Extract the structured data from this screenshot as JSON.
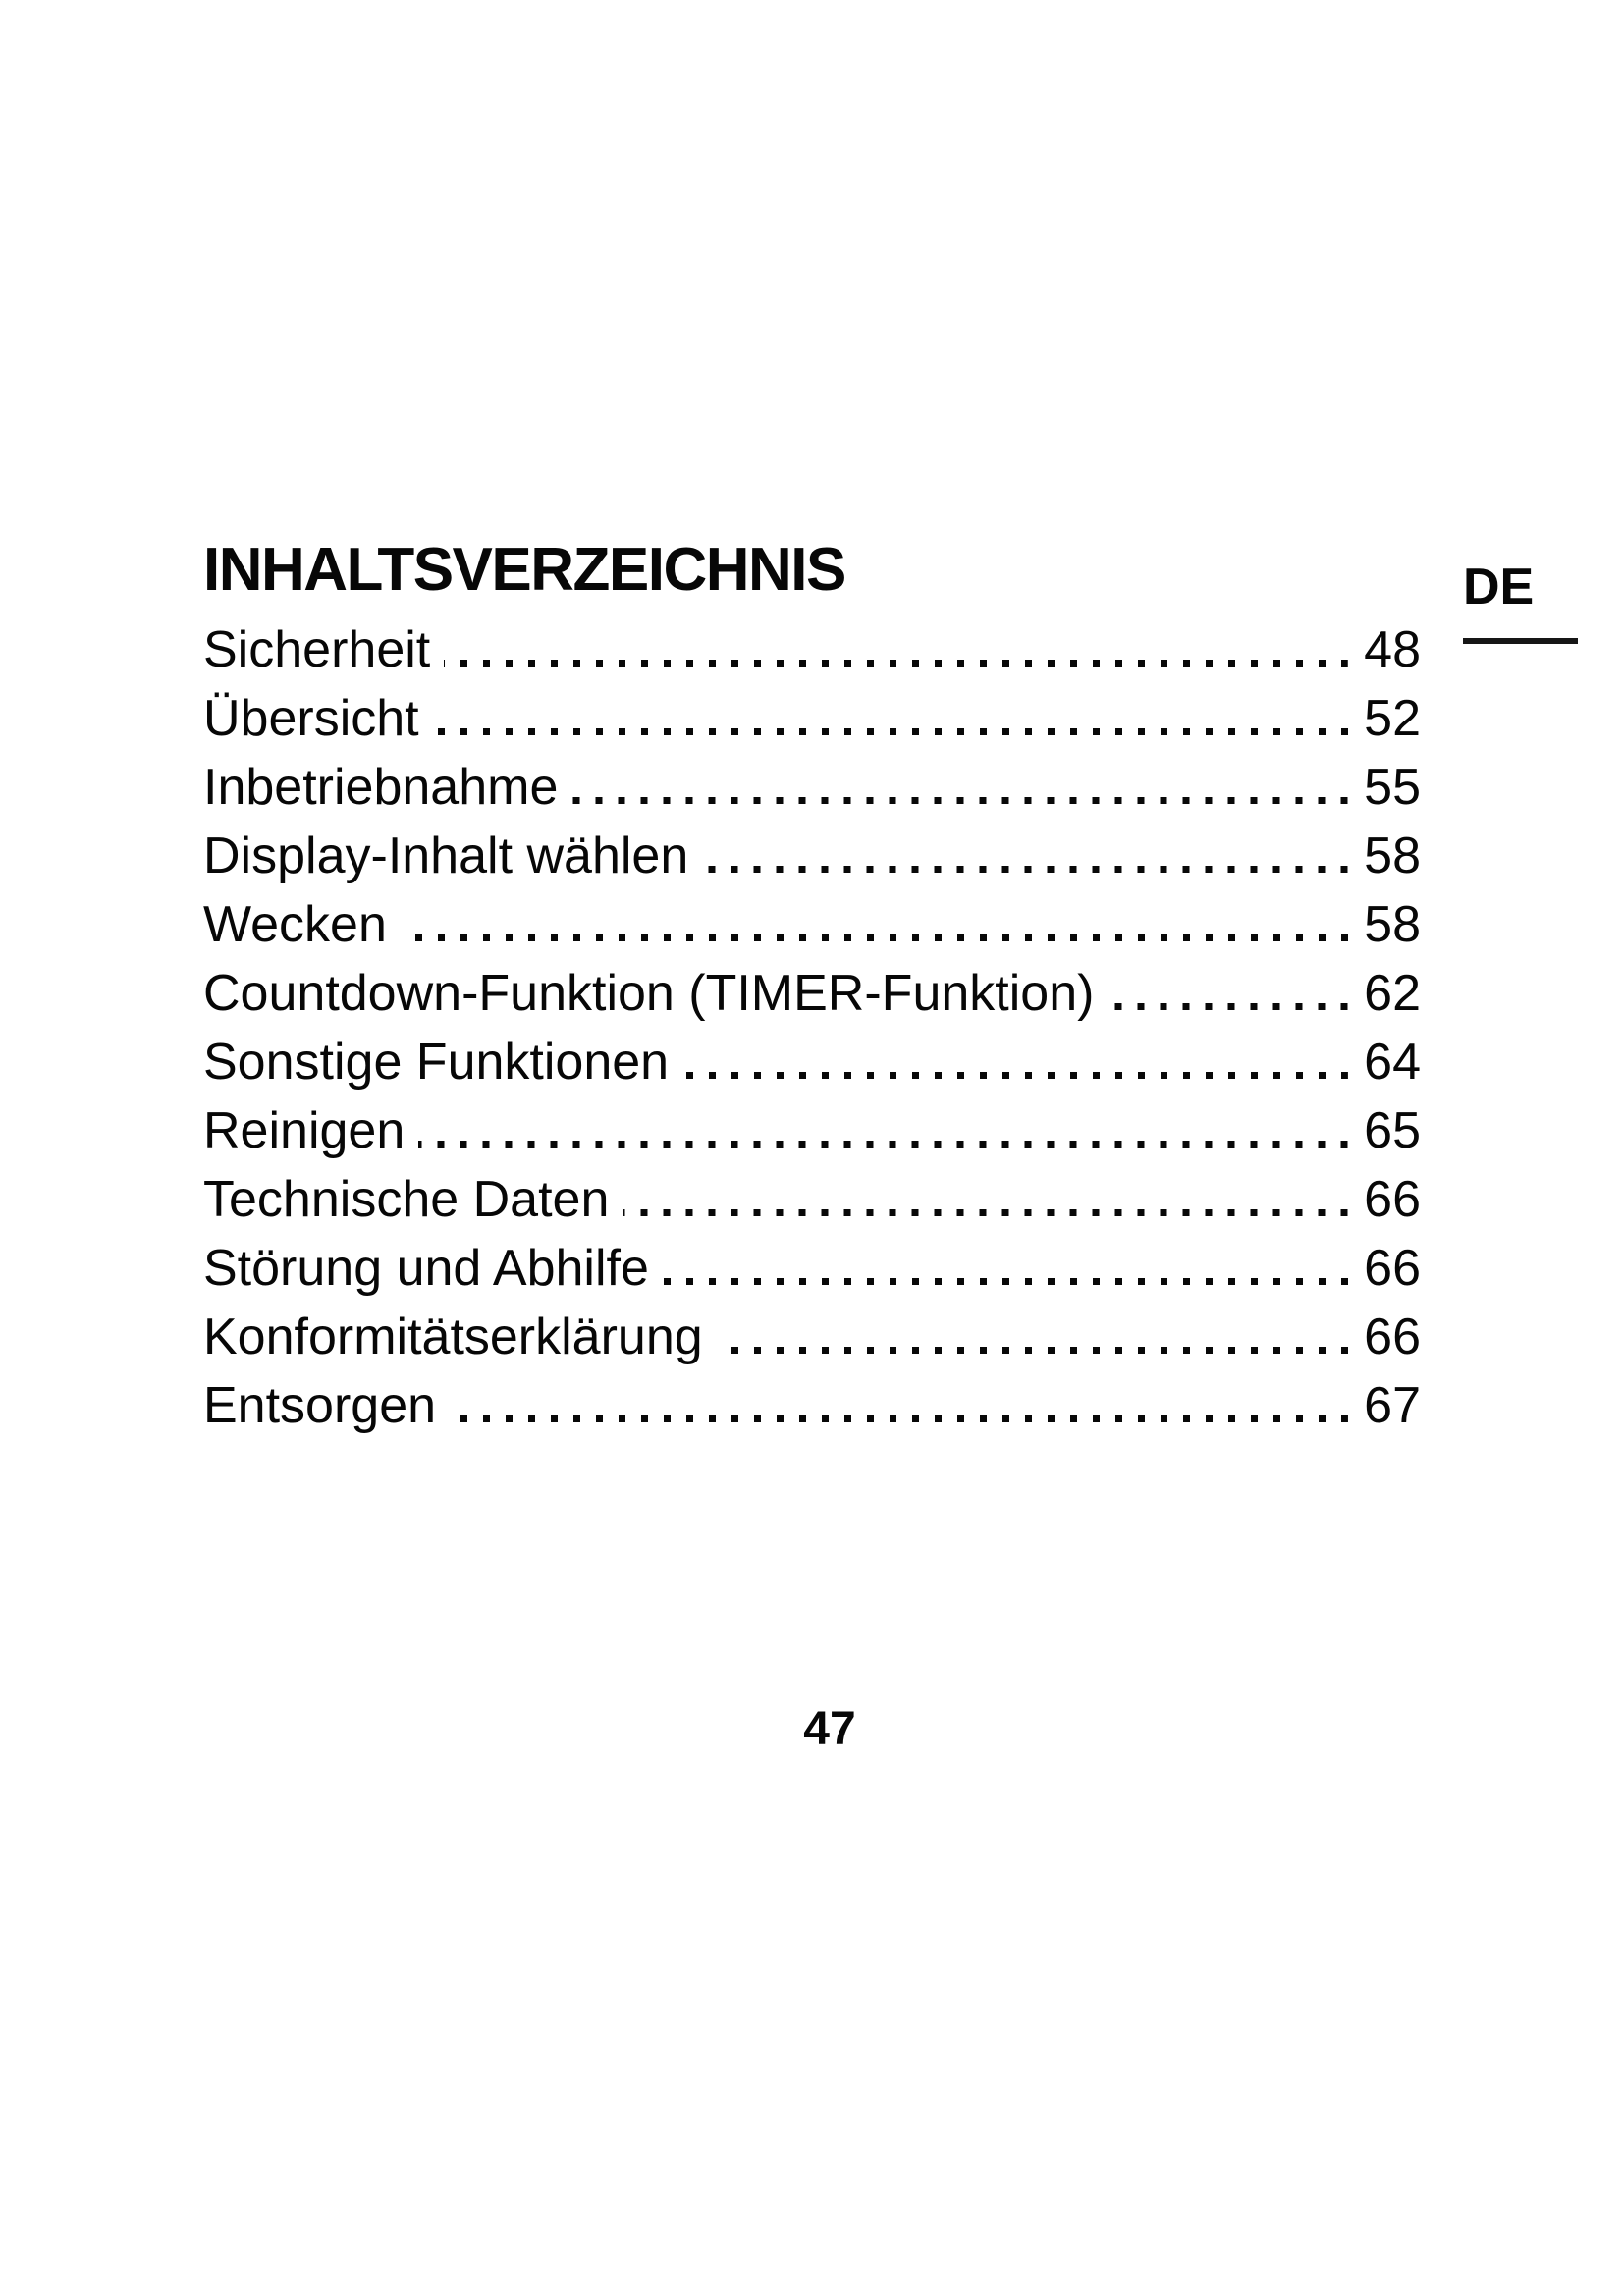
{
  "page": {
    "title": "INHALTSVERZEICHNIS",
    "language_badge": "DE",
    "page_number": "47"
  },
  "toc": {
    "entries": [
      {
        "label": "Sicherheit",
        "page": "48"
      },
      {
        "label": "Übersicht",
        "page": "52"
      },
      {
        "label": "Inbetriebnahme",
        "page": "55"
      },
      {
        "label": "Display-Inhalt wählen",
        "page": "58"
      },
      {
        "label": "Wecken",
        "page": "58"
      },
      {
        "label": "Countdown-Funktion (TIMER-Funktion)",
        "page": "62"
      },
      {
        "label": "Sonstige Funktionen",
        "page": "64"
      },
      {
        "label": "Reinigen",
        "page": "65"
      },
      {
        "label": "Technische Daten",
        "page": "66"
      },
      {
        "label": "Störung und Abhilfe",
        "page": "66"
      },
      {
        "label": "Konformitätserklärung",
        "page": "66"
      },
      {
        "label": "Entsorgen",
        "page": "67"
      }
    ]
  }
}
